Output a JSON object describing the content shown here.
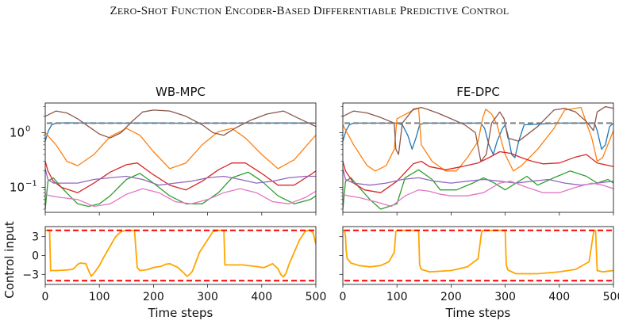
{
  "header": {
    "title": "Zero-Shot Function Encoder-Based Differentiable Predictive Control"
  },
  "chart_data": [
    {
      "type": "line",
      "panel": "top-left",
      "title": "WB-MPC",
      "yscale": "log",
      "ylim": [
        0.035,
        3.5
      ],
      "xlim": [
        0,
        500
      ],
      "yticks": [
        {
          "v": 1,
          "label": "10^0"
        },
        {
          "v": 0.1,
          "label": "10^-1"
        }
      ],
      "series": [
        {
          "color": "#1f77b4",
          "x": [
            0,
            6,
            12,
            20,
            40,
            100,
            160,
            200,
            260,
            320,
            380,
            440,
            500
          ],
          "y": [
            0.7,
            1.1,
            1.4,
            1.5,
            1.52,
            1.5,
            1.5,
            1.51,
            1.49,
            1.5,
            1.5,
            1.51,
            1.5
          ]
        },
        {
          "color": "#ff7f0e",
          "x": [
            0,
            20,
            40,
            60,
            90,
            120,
            150,
            175,
            200,
            230,
            260,
            290,
            320,
            345,
            370,
            400,
            430,
            460,
            490,
            500
          ],
          "y": [
            1.0,
            0.6,
            0.3,
            0.25,
            0.4,
            0.85,
            1.2,
            0.9,
            0.45,
            0.22,
            0.28,
            0.6,
            1.05,
            1.2,
            0.8,
            0.4,
            0.22,
            0.32,
            0.7,
            0.9
          ]
        },
        {
          "color": "#2ca02c",
          "x": [
            0,
            5,
            15,
            30,
            45,
            60,
            80,
            100,
            120,
            150,
            175,
            200,
            230,
            260,
            290,
            320,
            345,
            375,
            400,
            430,
            460,
            490,
            500
          ],
          "y": [
            0.04,
            0.13,
            0.15,
            0.1,
            0.07,
            0.05,
            0.045,
            0.05,
            0.07,
            0.14,
            0.18,
            0.12,
            0.07,
            0.05,
            0.05,
            0.08,
            0.15,
            0.19,
            0.13,
            0.07,
            0.05,
            0.06,
            0.07
          ]
        },
        {
          "color": "#d62728",
          "x": [
            0,
            5,
            15,
            30,
            60,
            90,
            120,
            150,
            170,
            200,
            230,
            260,
            290,
            320,
            345,
            370,
            400,
            430,
            460,
            490,
            500
          ],
          "y": [
            0.3,
            0.2,
            0.13,
            0.1,
            0.08,
            0.12,
            0.19,
            0.26,
            0.28,
            0.17,
            0.11,
            0.09,
            0.13,
            0.21,
            0.28,
            0.28,
            0.18,
            0.11,
            0.11,
            0.17,
            0.2
          ]
        },
        {
          "color": "#9467bd",
          "x": [
            0,
            5,
            15,
            30,
            60,
            90,
            120,
            150,
            180,
            210,
            240,
            270,
            300,
            330,
            360,
            390,
            420,
            450,
            480,
            500
          ],
          "y": [
            0.22,
            0.14,
            0.12,
            0.12,
            0.12,
            0.14,
            0.15,
            0.16,
            0.14,
            0.11,
            0.12,
            0.13,
            0.15,
            0.16,
            0.14,
            0.12,
            0.13,
            0.15,
            0.16,
            0.16
          ]
        },
        {
          "color": "#8c564b",
          "x": [
            0,
            20,
            40,
            60,
            80,
            100,
            120,
            140,
            160,
            180,
            200,
            230,
            260,
            290,
            310,
            330,
            350,
            380,
            410,
            440,
            470,
            500
          ],
          "y": [
            2.0,
            2.5,
            2.3,
            1.8,
            1.3,
            0.95,
            0.8,
            1.0,
            1.6,
            2.4,
            2.6,
            2.5,
            2.0,
            1.4,
            1.0,
            0.9,
            1.2,
            1.7,
            2.2,
            2.5,
            1.8,
            1.3
          ]
        },
        {
          "color": "#e377c2",
          "x": [
            0,
            10,
            30,
            60,
            90,
            120,
            150,
            180,
            210,
            240,
            270,
            300,
            330,
            360,
            390,
            420,
            450,
            480,
            500
          ],
          "y": [
            0.075,
            0.07,
            0.065,
            0.06,
            0.045,
            0.05,
            0.075,
            0.095,
            0.08,
            0.055,
            0.05,
            0.06,
            0.08,
            0.095,
            0.08,
            0.055,
            0.05,
            0.065,
            0.085
          ]
        }
      ],
      "reference": {
        "color": "#808080",
        "dash": true,
        "y": 1.5
      }
    },
    {
      "type": "line",
      "panel": "top-right",
      "title": "FE-DPC",
      "yscale": "log",
      "ylim": [
        0.035,
        3.5
      ],
      "xlim": [
        0,
        500
      ],
      "series": [
        {
          "color": "#1f77b4",
          "x": [
            0,
            6,
            12,
            20,
            100,
            110,
            120,
            128,
            135,
            142,
            150,
            200,
            255,
            262,
            270,
            278,
            285,
            295,
            300,
            305,
            312,
            318,
            325,
            335,
            400,
            465,
            470,
            478,
            485,
            493,
            500
          ],
          "y": [
            0.7,
            1.1,
            1.4,
            1.5,
            1.5,
            1.4,
            0.9,
            0.5,
            0.8,
            1.4,
            1.5,
            1.5,
            1.5,
            1.2,
            0.6,
            0.4,
            0.7,
            1.2,
            1.4,
            0.9,
            0.4,
            0.35,
            0.7,
            1.4,
            1.5,
            1.5,
            1.1,
            0.5,
            0.6,
            1.3,
            1.5
          ]
        },
        {
          "color": "#ff7f0e",
          "x": [
            0,
            20,
            45,
            60,
            80,
            95,
            100,
            130,
            140,
            145,
            165,
            190,
            210,
            230,
            250,
            258,
            264,
            275,
            285,
            290,
            300,
            315,
            330,
            360,
            390,
            410,
            440,
            460,
            470,
            480,
            500
          ],
          "y": [
            1.4,
            0.6,
            0.25,
            0.2,
            0.25,
            0.5,
            1.8,
            2.6,
            2.8,
            0.6,
            0.3,
            0.2,
            0.2,
            0.35,
            0.7,
            1.8,
            2.7,
            2.2,
            1.4,
            0.9,
            0.4,
            0.2,
            0.25,
            0.5,
            1.2,
            2.6,
            2.9,
            0.8,
            0.3,
            0.35,
            1.1
          ]
        },
        {
          "color": "#2ca02c",
          "x": [
            0,
            5,
            15,
            30,
            50,
            70,
            100,
            115,
            140,
            165,
            180,
            210,
            240,
            260,
            280,
            300,
            320,
            340,
            360,
            390,
            420,
            450,
            470,
            490,
            500
          ],
          "y": [
            0.04,
            0.13,
            0.15,
            0.1,
            0.06,
            0.04,
            0.05,
            0.15,
            0.21,
            0.14,
            0.09,
            0.09,
            0.12,
            0.15,
            0.12,
            0.09,
            0.12,
            0.16,
            0.11,
            0.15,
            0.2,
            0.16,
            0.12,
            0.14,
            0.12
          ]
        },
        {
          "color": "#d62728",
          "x": [
            0,
            5,
            20,
            40,
            70,
            100,
            130,
            145,
            160,
            190,
            220,
            250,
            270,
            290,
            310,
            330,
            350,
            370,
            400,
            430,
            450,
            470,
            500
          ],
          "y": [
            0.3,
            0.2,
            0.12,
            0.09,
            0.08,
            0.13,
            0.27,
            0.3,
            0.24,
            0.21,
            0.24,
            0.28,
            0.35,
            0.45,
            0.42,
            0.35,
            0.3,
            0.27,
            0.28,
            0.36,
            0.4,
            0.28,
            0.24
          ]
        },
        {
          "color": "#9467bd",
          "x": [
            0,
            5,
            20,
            50,
            80,
            110,
            140,
            170,
            200,
            230,
            260,
            290,
            320,
            350,
            380,
            410,
            440,
            470,
            500
          ],
          "y": [
            0.22,
            0.14,
            0.12,
            0.11,
            0.12,
            0.14,
            0.15,
            0.13,
            0.12,
            0.13,
            0.14,
            0.13,
            0.12,
            0.13,
            0.14,
            0.12,
            0.11,
            0.12,
            0.13
          ]
        },
        {
          "color": "#8c564b",
          "x": [
            0,
            20,
            45,
            70,
            95,
            98,
            103,
            110,
            130,
            145,
            155,
            175,
            200,
            225,
            245,
            255,
            265,
            275,
            290,
            298,
            305,
            325,
            360,
            390,
            410,
            430,
            450,
            463,
            470,
            485,
            500
          ],
          "y": [
            2.0,
            2.5,
            2.3,
            1.9,
            1.5,
            0.5,
            0.4,
            1.5,
            2.7,
            2.9,
            2.7,
            2.3,
            1.8,
            1.4,
            1.0,
            0.3,
            0.4,
            1.5,
            2.4,
            1.8,
            0.8,
            0.7,
            1.3,
            2.6,
            2.8,
            2.4,
            1.6,
            1.1,
            2.4,
            3.0,
            2.8
          ]
        },
        {
          "color": "#e377c2",
          "x": [
            0,
            10,
            30,
            60,
            90,
            115,
            140,
            160,
            180,
            200,
            230,
            260,
            290,
            310,
            340,
            370,
            400,
            430,
            460,
            480,
            500
          ],
          "y": [
            0.075,
            0.07,
            0.065,
            0.055,
            0.045,
            0.07,
            0.09,
            0.085,
            0.075,
            0.07,
            0.07,
            0.08,
            0.12,
            0.13,
            0.1,
            0.08,
            0.08,
            0.1,
            0.12,
            0.11,
            0.095
          ]
        }
      ],
      "reference": {
        "color": "#808080",
        "dash": true,
        "y": 1.5
      }
    },
    {
      "type": "line",
      "panel": "bottom-left",
      "xlabel": "Time steps",
      "ylabel": "Control input",
      "ylim": [
        -4.6,
        4.6
      ],
      "xlim": [
        0,
        500
      ],
      "yticks": [
        3,
        0,
        -3
      ],
      "xticks": [
        0,
        100,
        200,
        300,
        400,
        500
      ],
      "series": [
        {
          "color": "#ffa500",
          "x": [
            0,
            4,
            8,
            10,
            20,
            40,
            50,
            55,
            60,
            65,
            75,
            80,
            85,
            88,
            92,
            100,
            110,
            130,
            140,
            150,
            155,
            165,
            170,
            175,
            185,
            190,
            200,
            215,
            222,
            230,
            245,
            255,
            262,
            267,
            272,
            285,
            310,
            320,
            325,
            330,
            332,
            340,
            350,
            365,
            385,
            395,
            400,
            405,
            410,
            420,
            425,
            430,
            435,
            440,
            445,
            450,
            470,
            480,
            485,
            490,
            495,
            500
          ],
          "y": [
            4,
            4,
            4,
            -2.4,
            -2.4,
            -2.3,
            -2.2,
            -1.9,
            -1.4,
            -1.2,
            -1.3,
            -2.4,
            -3.3,
            -3.0,
            -2.6,
            -1.6,
            0,
            3.0,
            3.8,
            4,
            4,
            4,
            -1.9,
            -2.4,
            -2.3,
            -2.2,
            -1.9,
            -1.7,
            -1.4,
            -1.3,
            -1.9,
            -2.7,
            -3.3,
            -3.0,
            -2.5,
            0.5,
            3.8,
            4,
            4,
            4,
            -1.5,
            -1.5,
            -1.5,
            -1.5,
            -1.7,
            -1.8,
            -1.9,
            -1.9,
            -1.7,
            -1.3,
            -1.7,
            -2.1,
            -3.0,
            -3.4,
            -2.8,
            -1.5,
            2.5,
            3.8,
            4,
            4,
            3.6,
            1.8
          ]
        }
      ],
      "bounds": {
        "color": "#ff0000",
        "dash": true,
        "values": [
          4,
          -4
        ]
      }
    },
    {
      "type": "line",
      "panel": "bottom-right",
      "xlabel": "Time steps",
      "ylim": [
        -4.6,
        4.6
      ],
      "xlim": [
        0,
        500
      ],
      "xticks": [
        0,
        100,
        200,
        300,
        400,
        500
      ],
      "series": [
        {
          "color": "#ffa500",
          "x": [
            0,
            3,
            5,
            6,
            8,
            15,
            30,
            50,
            70,
            85,
            95,
            98,
            100,
            140,
            142,
            145,
            160,
            200,
            230,
            250,
            256,
            258,
            260,
            300,
            302,
            305,
            320,
            360,
            400,
            430,
            455,
            462,
            464,
            467,
            470,
            480,
            490,
            500
          ],
          "y": [
            4,
            4,
            3,
            1,
            -0.5,
            -1.2,
            -1.6,
            -1.8,
            -1.6,
            -1.0,
            0.5,
            3.8,
            4,
            4,
            -1.5,
            -2.2,
            -2.6,
            -2.4,
            -1.8,
            -0.5,
            3.5,
            4,
            4,
            4,
            -1.5,
            -2.3,
            -2.9,
            -2.9,
            -2.6,
            -2.2,
            -1.0,
            3.0,
            4,
            4,
            -2.4,
            -2.6,
            -2.5,
            -2.4
          ]
        }
      ],
      "bounds": {
        "color": "#ff0000",
        "dash": true,
        "values": [
          4,
          -4
        ]
      }
    }
  ]
}
